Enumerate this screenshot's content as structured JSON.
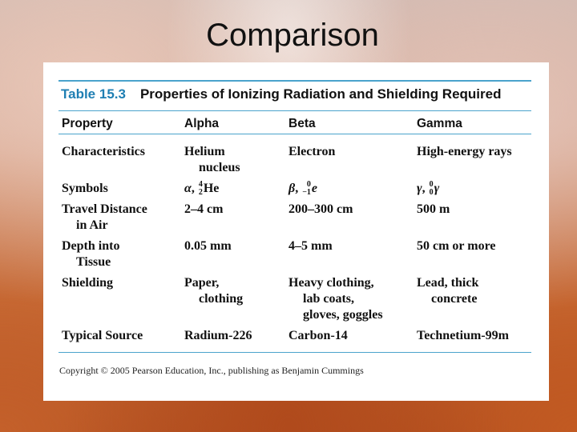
{
  "slide": {
    "title": "Comparison"
  },
  "table": {
    "number": "Table 15.3",
    "caption": "Properties of Ionizing Radiation and Shielding Required",
    "headers": [
      "Property",
      "Alpha",
      "Beta",
      "Gamma"
    ],
    "rows": [
      {
        "property": [
          "Characteristics"
        ],
        "alpha": [
          "Helium",
          "nucleus"
        ],
        "beta": [
          "Electron"
        ],
        "gamma": [
          "High-energy rays"
        ]
      },
      {
        "property": [
          "Symbols"
        ],
        "alpha": [
          "α, ⁴₂He"
        ],
        "beta": [
          "β, ⁰₋₁e"
        ],
        "gamma": [
          "γ, ⁰₀γ"
        ]
      },
      {
        "property": [
          "Travel Distance",
          "in Air"
        ],
        "alpha": [
          "2–4 cm"
        ],
        "beta": [
          "200–300 cm"
        ],
        "gamma": [
          "500 m"
        ]
      },
      {
        "property": [
          "Depth into",
          "Tissue"
        ],
        "alpha": [
          "0.05 mm"
        ],
        "beta": [
          "4–5 mm"
        ],
        "gamma": [
          "50 cm or more"
        ]
      },
      {
        "property": [
          "Shielding"
        ],
        "alpha": [
          "Paper,",
          "clothing"
        ],
        "beta": [
          "Heavy clothing,",
          "lab coats,",
          "gloves, goggles"
        ],
        "gamma": [
          "Lead, thick",
          "concrete"
        ]
      },
      {
        "property": [
          "Typical Source"
        ],
        "alpha": [
          "Radium-226"
        ],
        "beta": [
          "Carbon-14"
        ],
        "gamma": [
          "Technetium-99m"
        ]
      }
    ],
    "symbols": {
      "alpha": {
        "greek": "α",
        "sep": ",",
        "mass": "4",
        "charge": "2",
        "element": "He"
      },
      "beta": {
        "greek": "β",
        "sep": ",",
        "mass": "0",
        "charge": "−1",
        "element": "e"
      },
      "gamma": {
        "greek": "γ",
        "sep": ",",
        "mass": "0",
        "charge": "0",
        "element": "γ"
      }
    },
    "copyright": "Copyright © 2005 Pearson Education, Inc., publishing as Benjamin Cummings"
  }
}
